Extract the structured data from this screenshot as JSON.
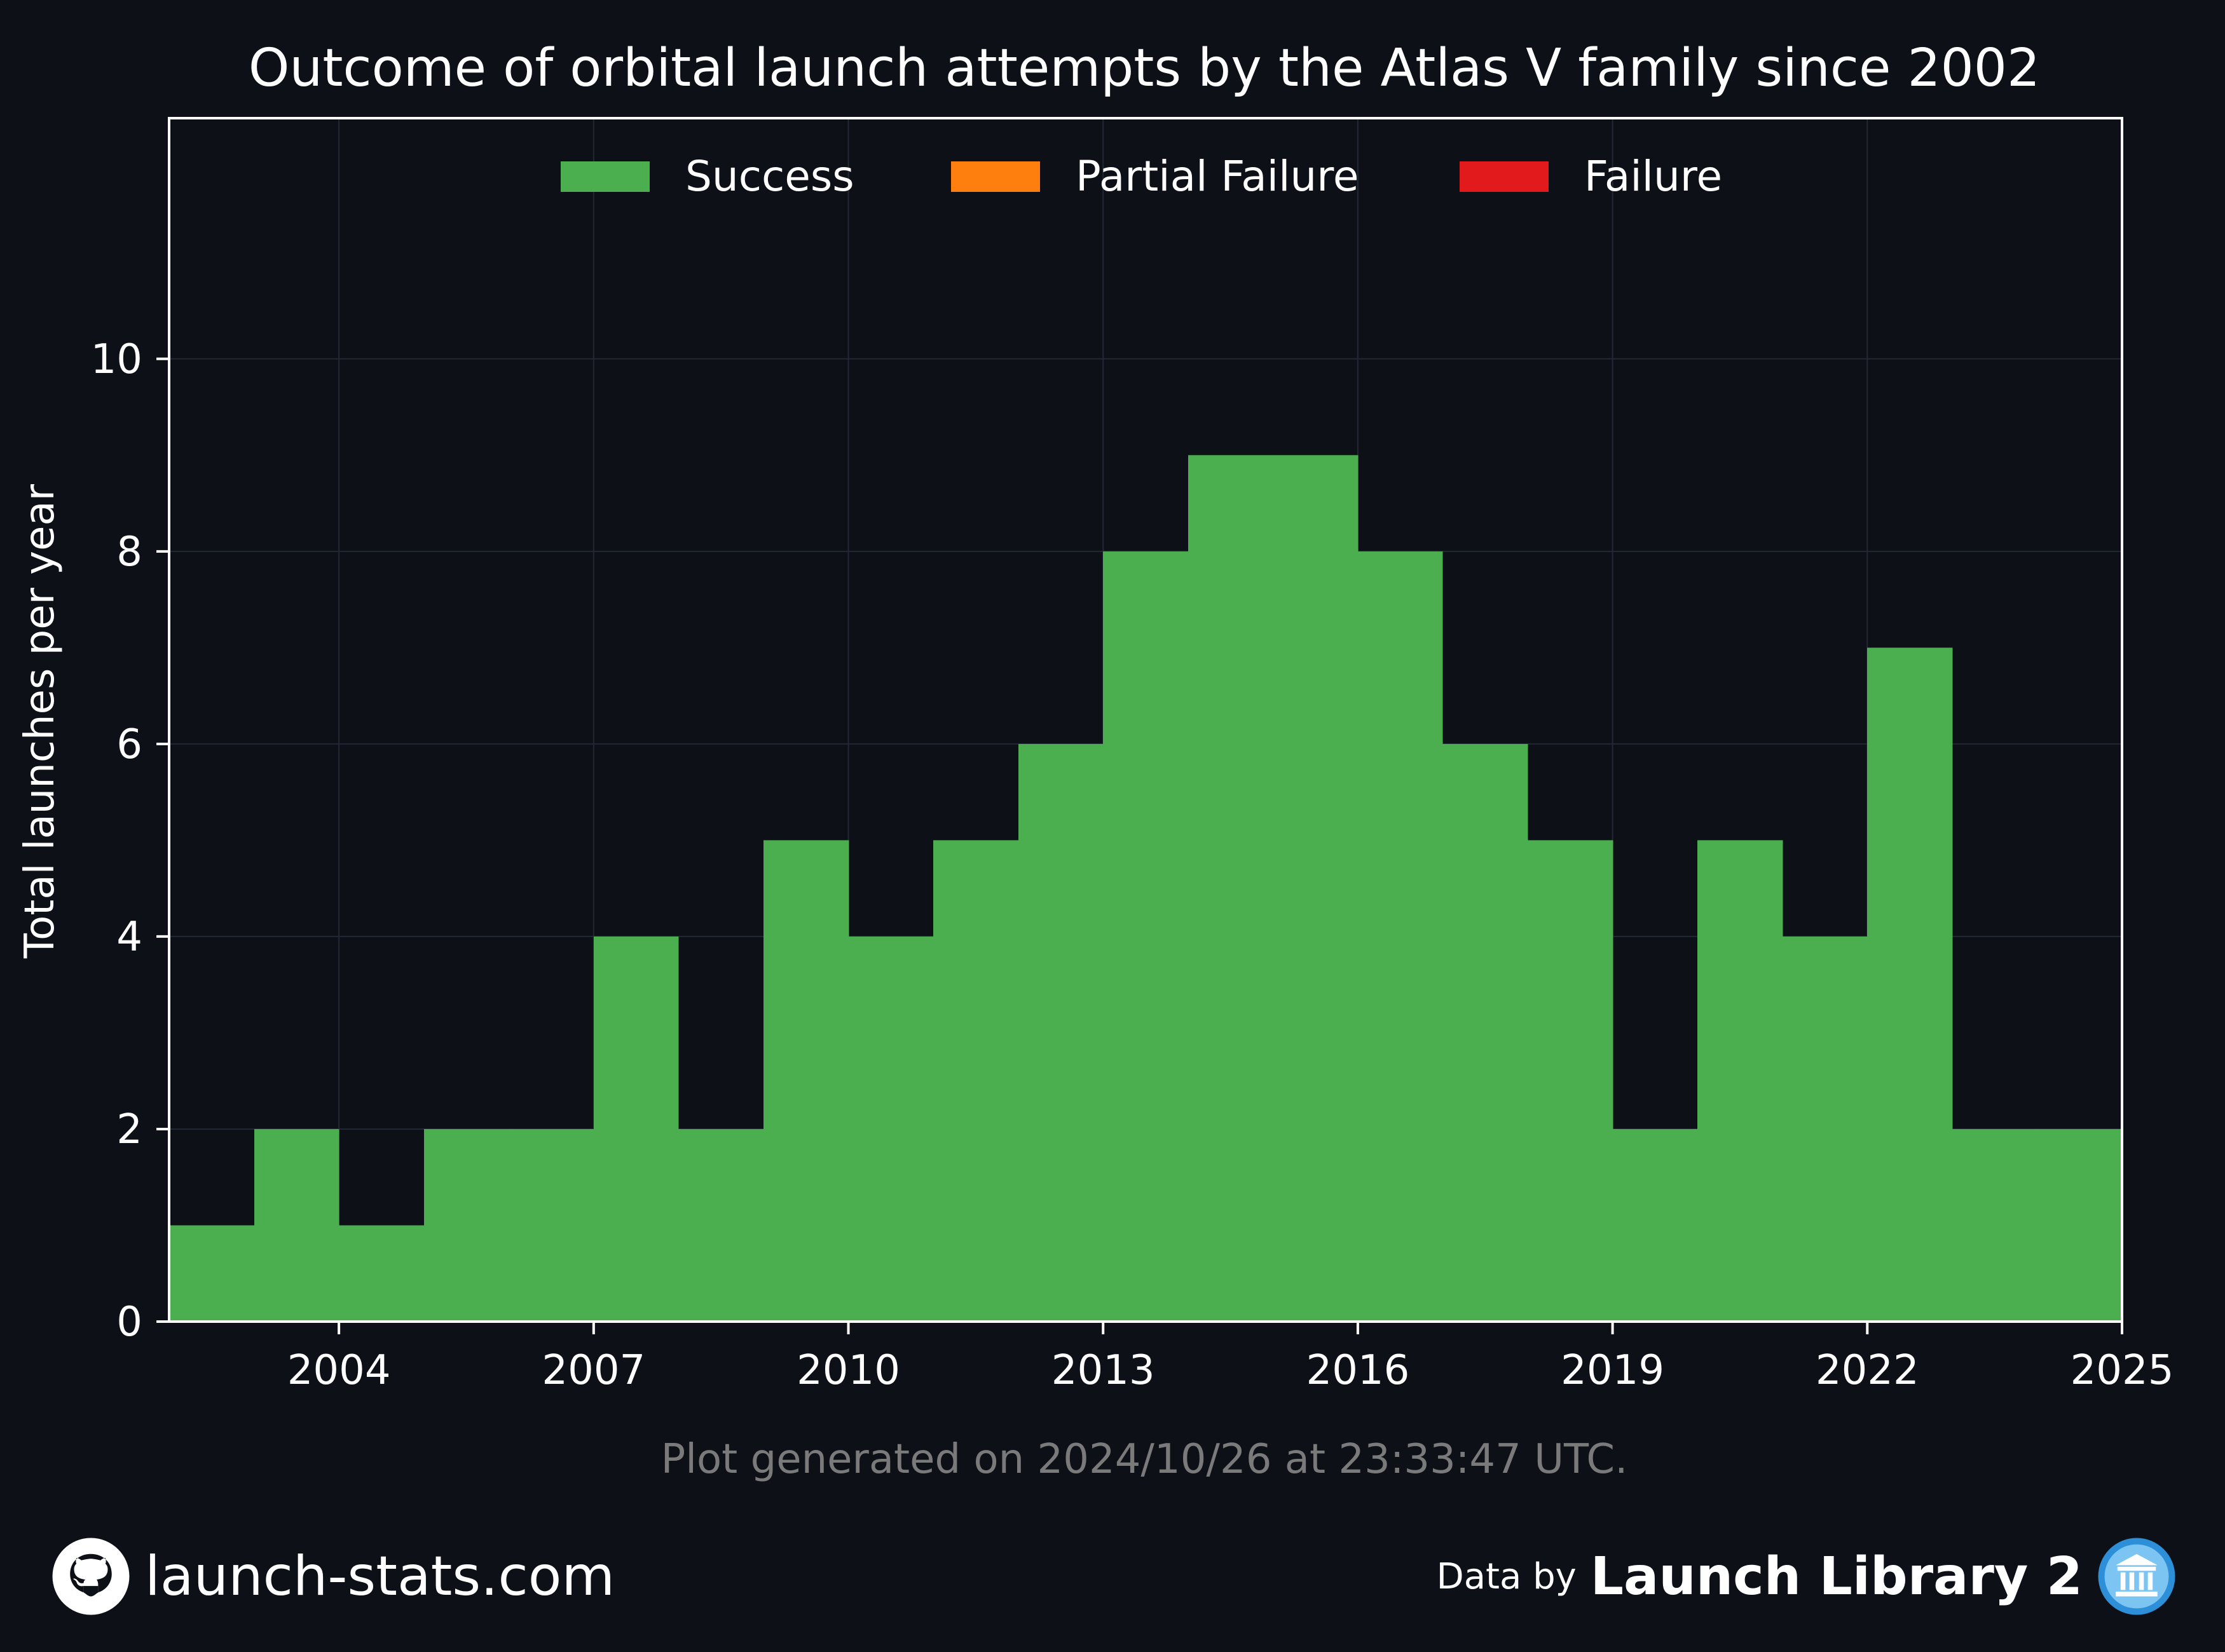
{
  "chart_data": {
    "type": "bar",
    "title": "Outcome of orbital launch attempts by the Atlas V family since 2002",
    "xlabel": "",
    "ylabel": "Total launches per year",
    "x": [
      2002,
      2003,
      2004,
      2005,
      2006,
      2007,
      2008,
      2009,
      2010,
      2011,
      2012,
      2013,
      2014,
      2015,
      2016,
      2017,
      2018,
      2019,
      2020,
      2021,
      2022,
      2023,
      2024
    ],
    "series": [
      {
        "name": "Success",
        "color": "#4caf4f",
        "values": [
          1,
          2,
          1,
          2,
          2,
          4,
          2,
          5,
          4,
          5,
          6,
          8,
          9,
          9,
          8,
          6,
          5,
          2,
          5,
          4,
          7,
          2,
          2
        ]
      },
      {
        "name": "Partial Failure",
        "color": "#ff7f0e",
        "values": [
          0,
          0,
          0,
          0,
          0,
          0,
          0,
          0,
          0,
          0,
          0,
          0,
          0,
          0,
          0,
          0,
          0,
          0,
          0,
          0,
          0,
          0,
          0
        ]
      },
      {
        "name": "Failure",
        "color": "#e31a1c",
        "values": [
          0,
          0,
          0,
          0,
          0,
          0,
          0,
          0,
          0,
          0,
          0,
          0,
          0,
          0,
          0,
          0,
          0,
          0,
          0,
          0,
          0,
          0,
          0
        ]
      }
    ],
    "xlim": [
      2002,
      2025
    ],
    "ylim": [
      0,
      12.5
    ],
    "xticks": [
      2004,
      2007,
      2010,
      2013,
      2016,
      2019,
      2022,
      2025
    ],
    "yticks": [
      0,
      2,
      4,
      6,
      8,
      10
    ],
    "grid": true,
    "legend_position": "top-center"
  },
  "note": "Plot generated on 2024/10/26 at 23:33:47 UTC.",
  "footer": {
    "site": "launch-stats.com",
    "data_by": "Data by",
    "source": "Launch Library 2",
    "site_icon": "github-icon",
    "source_icon": "library-icon"
  }
}
